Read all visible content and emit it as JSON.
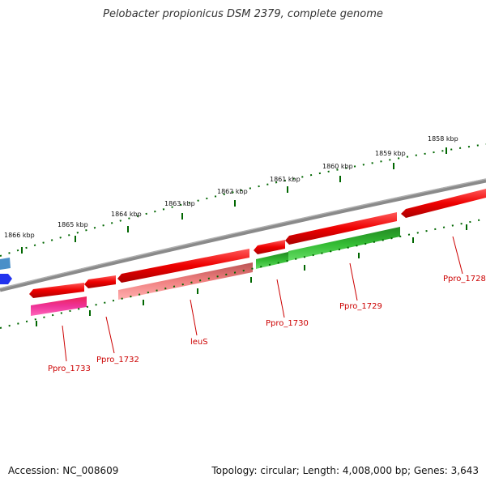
{
  "title": "Pelobacter propionicus DSM 2379, complete genome",
  "accession": "Accession: NC_008609",
  "topology": "Topology: circular; Length: 4,008,000 bp; Genes: 3,643",
  "scale_ticks": [
    "1858 kbp",
    "1859 kbp",
    "1860 kbp",
    "1861 kbp",
    "1862 kbp",
    "1863 kbp",
    "1864 kbp",
    "1865 kbp",
    "1866 kbp"
  ],
  "gene_labels": [
    "Ppro_1728",
    "Ppro_1729",
    "Ppro_1730",
    "leuS",
    "Ppro_1732",
    "Ppro_1733"
  ],
  "colors": {
    "forward_gene": "#ee0000",
    "reverse_gene_pink": "#ee3399",
    "reverse_gene_green": "#33bb33",
    "leuS_rna": "#f08080",
    "blue_feature": "#2255dd",
    "axis_ticks": "#006600",
    "label_red": "#cc0000"
  }
}
